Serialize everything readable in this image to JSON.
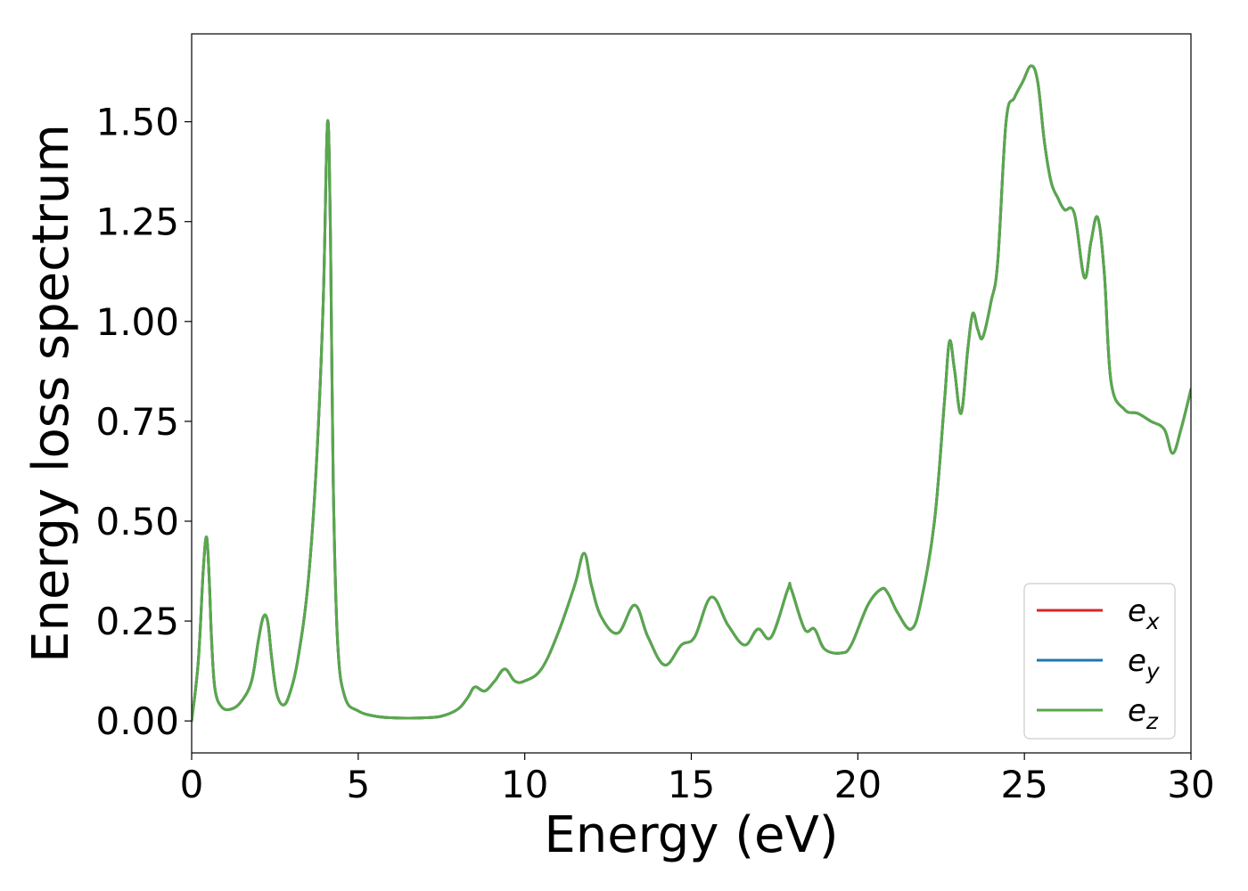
{
  "chart_data": {
    "type": "line",
    "xlabel": "Energy (eV)",
    "ylabel": "Energy loss spectrum",
    "xlim": [
      0,
      30
    ],
    "ylim": [
      -0.08,
      1.72
    ],
    "xticks": [
      0,
      5,
      10,
      15,
      20,
      25,
      30
    ],
    "xtick_labels": [
      "0",
      "5",
      "10",
      "15",
      "20",
      "25",
      "30"
    ],
    "yticks": [
      0.0,
      0.25,
      0.5,
      0.75,
      1.0,
      1.25,
      1.5
    ],
    "ytick_labels": [
      "0.00",
      "0.25",
      "0.50",
      "0.75",
      "1.00",
      "1.25",
      "1.50"
    ],
    "grid": false,
    "legend_position": "lower-right",
    "series": [
      {
        "name": "e_x",
        "label_base": "e",
        "label_sub": "x",
        "color": "#d62728",
        "x": [
          0,
          0.2,
          0.35,
          0.45,
          0.53,
          0.6,
          0.7,
          0.9,
          1.2,
          1.5,
          1.8,
          2.0,
          2.15,
          2.28,
          2.4,
          2.55,
          2.75,
          2.95,
          3.2,
          3.5,
          3.75,
          3.95,
          4.08,
          4.17,
          4.25,
          4.38,
          4.6,
          5.0,
          5.5,
          6.0,
          6.5,
          7.0,
          7.5,
          8.0,
          8.3,
          8.5,
          8.8,
          9.1,
          9.4,
          9.7,
          10.0,
          10.5,
          11.0,
          11.5,
          11.78,
          12.0,
          12.3,
          12.8,
          13.3,
          13.7,
          14.2,
          14.7,
          15.1,
          15.6,
          16.1,
          16.6,
          17.0,
          17.4,
          17.9,
          18.0,
          18.4,
          18.7,
          19.0,
          19.5,
          19.8,
          20.3,
          20.7,
          20.9,
          21.2,
          21.6,
          21.9,
          22.3,
          22.6,
          22.75,
          22.9,
          23.1,
          23.3,
          23.45,
          23.6,
          23.75,
          24.0,
          24.2,
          24.45,
          24.7,
          24.95,
          25.2,
          25.4,
          25.6,
          25.8,
          26.0,
          26.2,
          26.5,
          26.8,
          27.0,
          27.2,
          27.4,
          27.6,
          28.0,
          28.4,
          28.8,
          29.2,
          29.45,
          29.7,
          30.0
        ],
        "y": [
          0.0,
          0.15,
          0.38,
          0.46,
          0.35,
          0.2,
          0.08,
          0.035,
          0.03,
          0.05,
          0.1,
          0.2,
          0.26,
          0.25,
          0.16,
          0.07,
          0.04,
          0.07,
          0.16,
          0.35,
          0.65,
          1.05,
          1.5,
          1.2,
          0.6,
          0.2,
          0.06,
          0.025,
          0.012,
          0.008,
          0.007,
          0.008,
          0.012,
          0.03,
          0.06,
          0.085,
          0.075,
          0.1,
          0.13,
          0.1,
          0.1,
          0.13,
          0.22,
          0.34,
          0.42,
          0.34,
          0.26,
          0.22,
          0.29,
          0.21,
          0.14,
          0.19,
          0.21,
          0.31,
          0.24,
          0.19,
          0.23,
          0.21,
          0.33,
          0.33,
          0.23,
          0.23,
          0.18,
          0.17,
          0.19,
          0.29,
          0.33,
          0.32,
          0.27,
          0.23,
          0.3,
          0.5,
          0.8,
          0.95,
          0.88,
          0.77,
          0.93,
          1.02,
          0.98,
          0.96,
          1.05,
          1.15,
          1.5,
          1.56,
          1.6,
          1.64,
          1.6,
          1.45,
          1.35,
          1.31,
          1.28,
          1.27,
          1.11,
          1.2,
          1.26,
          1.12,
          0.85,
          0.78,
          0.77,
          0.75,
          0.73,
          0.67,
          0.73,
          0.83
        ]
      },
      {
        "name": "e_y",
        "label_base": "e",
        "label_sub": "y",
        "color": "#1f77b4",
        "x": [
          0,
          0.2,
          0.35,
          0.45,
          0.53,
          0.6,
          0.7,
          0.9,
          1.2,
          1.5,
          1.8,
          2.0,
          2.15,
          2.28,
          2.4,
          2.55,
          2.75,
          2.95,
          3.2,
          3.5,
          3.75,
          3.95,
          4.08,
          4.17,
          4.25,
          4.38,
          4.6,
          5.0,
          5.5,
          6.0,
          6.5,
          7.0,
          7.5,
          8.0,
          8.3,
          8.5,
          8.8,
          9.1,
          9.4,
          9.7,
          10.0,
          10.5,
          11.0,
          11.5,
          11.78,
          12.0,
          12.3,
          12.8,
          13.3,
          13.7,
          14.2,
          14.7,
          15.1,
          15.6,
          16.1,
          16.6,
          17.0,
          17.4,
          17.9,
          18.0,
          18.4,
          18.7,
          19.0,
          19.5,
          19.8,
          20.3,
          20.7,
          20.9,
          21.2,
          21.6,
          21.9,
          22.3,
          22.6,
          22.75,
          22.9,
          23.1,
          23.3,
          23.45,
          23.6,
          23.75,
          24.0,
          24.2,
          24.45,
          24.7,
          24.95,
          25.2,
          25.4,
          25.6,
          25.8,
          26.0,
          26.2,
          26.5,
          26.8,
          27.0,
          27.2,
          27.4,
          27.6,
          28.0,
          28.4,
          28.8,
          29.2,
          29.45,
          29.7,
          30.0
        ],
        "y": [
          0.0,
          0.15,
          0.38,
          0.46,
          0.35,
          0.2,
          0.08,
          0.035,
          0.03,
          0.05,
          0.1,
          0.2,
          0.26,
          0.25,
          0.16,
          0.07,
          0.04,
          0.07,
          0.16,
          0.35,
          0.65,
          1.05,
          1.5,
          1.2,
          0.6,
          0.2,
          0.06,
          0.025,
          0.012,
          0.008,
          0.007,
          0.008,
          0.012,
          0.03,
          0.06,
          0.085,
          0.075,
          0.1,
          0.13,
          0.1,
          0.1,
          0.13,
          0.22,
          0.34,
          0.42,
          0.34,
          0.26,
          0.22,
          0.29,
          0.21,
          0.14,
          0.19,
          0.21,
          0.31,
          0.24,
          0.19,
          0.23,
          0.21,
          0.33,
          0.33,
          0.23,
          0.23,
          0.18,
          0.17,
          0.19,
          0.29,
          0.33,
          0.32,
          0.27,
          0.23,
          0.3,
          0.5,
          0.8,
          0.95,
          0.88,
          0.77,
          0.93,
          1.02,
          0.98,
          0.96,
          1.05,
          1.15,
          1.5,
          1.56,
          1.6,
          1.64,
          1.6,
          1.45,
          1.35,
          1.31,
          1.28,
          1.27,
          1.11,
          1.2,
          1.26,
          1.12,
          0.85,
          0.78,
          0.77,
          0.75,
          0.73,
          0.67,
          0.73,
          0.83
        ]
      },
      {
        "name": "e_z",
        "label_base": "e",
        "label_sub": "z",
        "color": "#59a84b",
        "x": [
          0,
          0.2,
          0.35,
          0.45,
          0.53,
          0.6,
          0.7,
          0.9,
          1.2,
          1.5,
          1.8,
          2.0,
          2.15,
          2.28,
          2.4,
          2.55,
          2.75,
          2.95,
          3.2,
          3.5,
          3.75,
          3.95,
          4.08,
          4.17,
          4.25,
          4.38,
          4.6,
          5.0,
          5.5,
          6.0,
          6.5,
          7.0,
          7.5,
          8.0,
          8.3,
          8.5,
          8.8,
          9.1,
          9.4,
          9.7,
          10.0,
          10.5,
          11.0,
          11.5,
          11.78,
          12.0,
          12.3,
          12.8,
          13.3,
          13.7,
          14.2,
          14.7,
          15.1,
          15.6,
          16.1,
          16.6,
          17.0,
          17.4,
          17.9,
          18.0,
          18.4,
          18.7,
          19.0,
          19.5,
          19.8,
          20.3,
          20.7,
          20.9,
          21.2,
          21.6,
          21.9,
          22.3,
          22.6,
          22.75,
          22.9,
          23.1,
          23.3,
          23.45,
          23.6,
          23.75,
          24.0,
          24.2,
          24.45,
          24.7,
          24.95,
          25.2,
          25.4,
          25.6,
          25.8,
          26.0,
          26.2,
          26.5,
          26.8,
          27.0,
          27.2,
          27.4,
          27.6,
          28.0,
          28.4,
          28.8,
          29.2,
          29.45,
          29.7,
          30.0
        ],
        "y": [
          0.0,
          0.15,
          0.38,
          0.46,
          0.35,
          0.2,
          0.08,
          0.035,
          0.03,
          0.05,
          0.1,
          0.2,
          0.26,
          0.25,
          0.16,
          0.07,
          0.04,
          0.07,
          0.16,
          0.35,
          0.65,
          1.05,
          1.5,
          1.2,
          0.6,
          0.2,
          0.06,
          0.025,
          0.012,
          0.008,
          0.007,
          0.008,
          0.012,
          0.03,
          0.06,
          0.085,
          0.075,
          0.1,
          0.13,
          0.1,
          0.1,
          0.13,
          0.22,
          0.34,
          0.42,
          0.34,
          0.26,
          0.22,
          0.29,
          0.21,
          0.14,
          0.19,
          0.21,
          0.31,
          0.24,
          0.19,
          0.23,
          0.21,
          0.33,
          0.33,
          0.23,
          0.23,
          0.18,
          0.17,
          0.19,
          0.29,
          0.33,
          0.32,
          0.27,
          0.23,
          0.3,
          0.5,
          0.8,
          0.95,
          0.88,
          0.77,
          0.93,
          1.02,
          0.98,
          0.96,
          1.05,
          1.15,
          1.5,
          1.56,
          1.6,
          1.64,
          1.6,
          1.45,
          1.35,
          1.31,
          1.28,
          1.27,
          1.11,
          1.2,
          1.26,
          1.12,
          0.85,
          0.78,
          0.77,
          0.75,
          0.73,
          0.67,
          0.73,
          0.83
        ]
      }
    ]
  }
}
